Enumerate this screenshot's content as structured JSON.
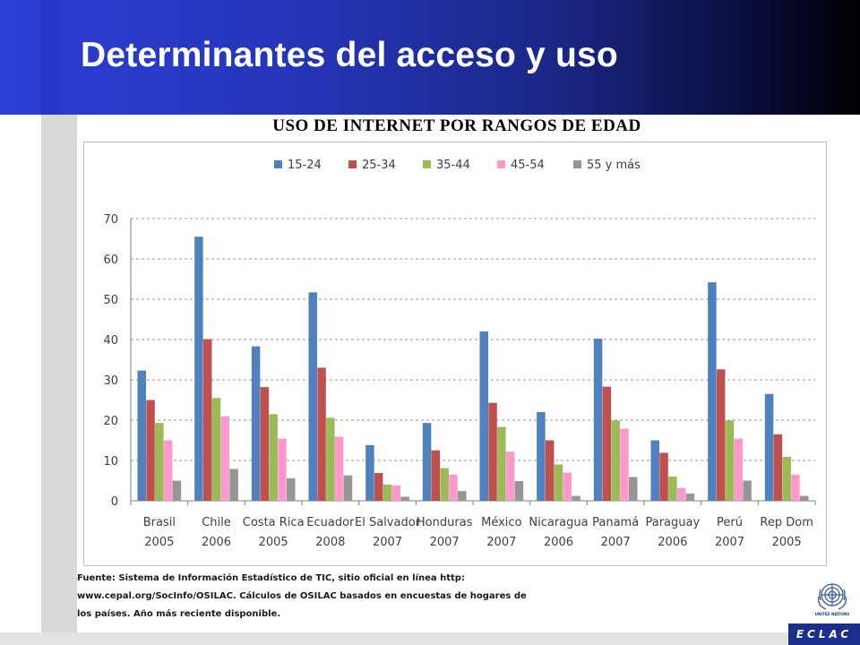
{
  "title": "Determinantes del acceso y uso",
  "chart_data": {
    "type": "bar",
    "title": "USO DE INTERNET POR RANGOS DE EDAD",
    "categories": [
      [
        "Brasil",
        "2005"
      ],
      [
        "Chile",
        "2006"
      ],
      [
        "Costa Rica",
        "2005"
      ],
      [
        "Ecuador",
        "2008"
      ],
      [
        "El Salvador",
        "2007"
      ],
      [
        "Honduras",
        "2007"
      ],
      [
        "México",
        "2007"
      ],
      [
        "Nicaragua",
        "2006"
      ],
      [
        "Panamá",
        "2007"
      ],
      [
        "Paraguay",
        "2006"
      ],
      [
        "Perú",
        "2007"
      ],
      [
        "Rep Dom",
        "2005"
      ]
    ],
    "series": [
      {
        "name": "15-24",
        "color": "#4f81bd",
        "values": [
          32.3,
          65.5,
          38.3,
          51.7,
          13.8,
          19.3,
          42.0,
          22.0,
          40.2,
          15.0,
          54.2,
          26.5
        ]
      },
      {
        "name": "25-34",
        "color": "#c0504d",
        "values": [
          25.0,
          40.1,
          28.2,
          33.0,
          6.9,
          12.5,
          24.3,
          15.0,
          28.3,
          11.9,
          32.6,
          16.5
        ]
      },
      {
        "name": "35-44",
        "color": "#9bbb59",
        "values": [
          19.3,
          25.5,
          21.5,
          20.6,
          4.0,
          8.1,
          18.3,
          9.0,
          19.9,
          6.0,
          19.9,
          10.9
        ]
      },
      {
        "name": "45-54",
        "color": "#ff99cc",
        "values": [
          15.0,
          21.0,
          15.4,
          15.9,
          3.8,
          6.5,
          12.2,
          7.0,
          17.9,
          3.2,
          15.4,
          6.5
        ]
      },
      {
        "name": "55 y más",
        "color": "#969696",
        "values": [
          5.0,
          7.9,
          5.6,
          6.3,
          1.0,
          2.4,
          4.9,
          1.2,
          5.9,
          1.8,
          5.0,
          1.2
        ]
      }
    ],
    "ylim": [
      0,
      70
    ],
    "yticks": [
      0,
      10,
      20,
      30,
      40,
      50,
      60,
      70
    ],
    "grid": true,
    "legend_position": "top"
  },
  "footnote": {
    "lines": [
      "Fuente: Sistema de Información Estadístico de TIC, sitio oficial en línea http:",
      "www.cepal.org/SocInfo/OSILAC. Cálculos de OSILAC basados en encuestas de hogares de",
      "los países. Año más reciente disponible."
    ]
  },
  "logo": {
    "un_text": "UNITED NATIONS",
    "eclac_text": "ECLAC"
  }
}
